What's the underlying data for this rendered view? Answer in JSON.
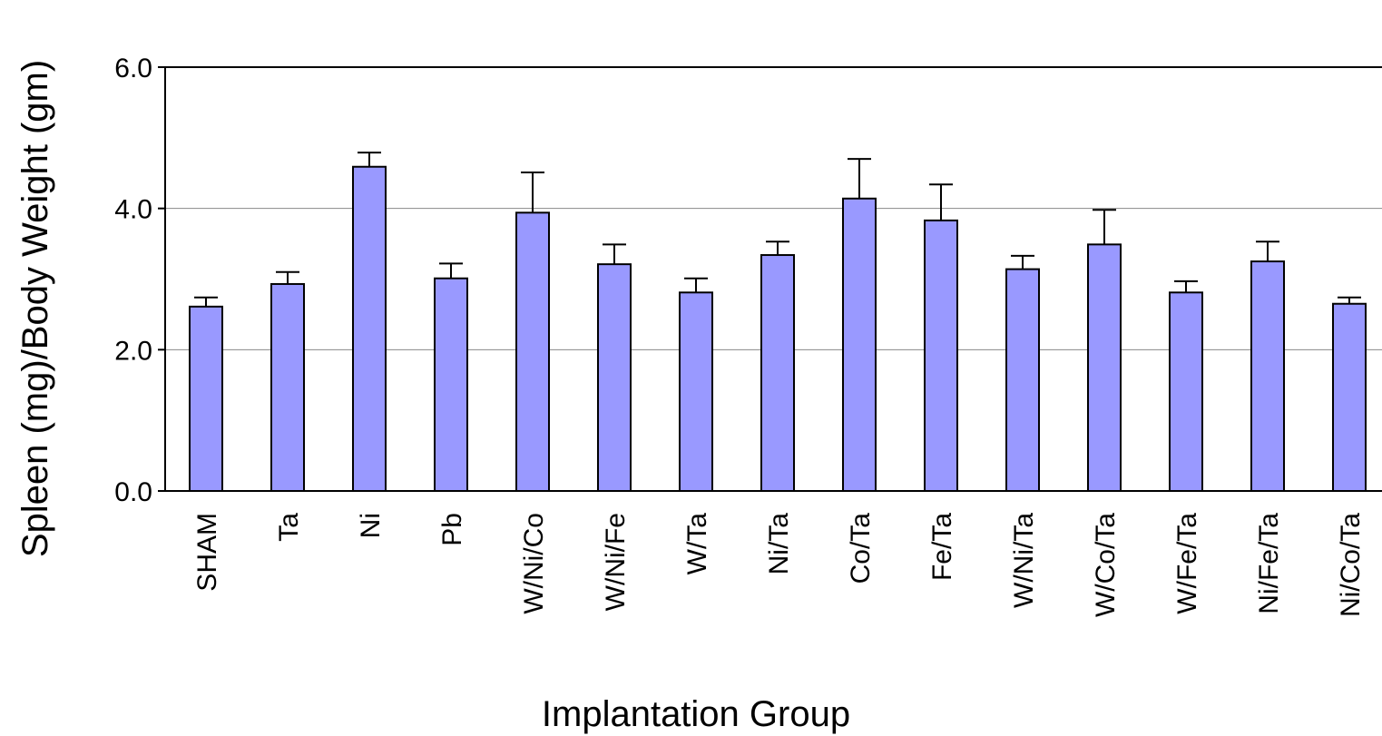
{
  "chart_data": {
    "type": "bar",
    "x_label": "Implantation Group",
    "y_label": "Spleen (mg)/Body Weight (gm)",
    "categories": [
      "SHAM",
      "Ta",
      "Ni",
      "Pb",
      "W/Ni/Co",
      "W/Ni/Fe",
      "W/Ta",
      "Ni/Ta",
      "Co/Ta",
      "Fe/Ta",
      "W/Ni/Ta",
      "W/Co/Ta",
      "W/Fe/Ta",
      "Ni/Fe/Ta",
      "Ni/Co/Ta"
    ],
    "values": [
      2.61,
      2.93,
      4.59,
      3.01,
      3.94,
      3.21,
      2.81,
      3.34,
      4.14,
      3.83,
      3.14,
      3.49,
      2.81,
      3.25,
      2.65
    ],
    "errors": [
      0.13,
      0.17,
      0.2,
      0.21,
      0.57,
      0.28,
      0.2,
      0.19,
      0.56,
      0.51,
      0.19,
      0.49,
      0.16,
      0.28,
      0.09
    ],
    "color": "#9999ff",
    "ylim": [
      0,
      6
    ],
    "yticks": [
      {
        "value": 0,
        "label": "0.0"
      },
      {
        "value": 2,
        "label": "2.0"
      },
      {
        "value": 4,
        "label": "4.0"
      },
      {
        "value": 6,
        "label": "6.0"
      }
    ],
    "grid": true
  }
}
